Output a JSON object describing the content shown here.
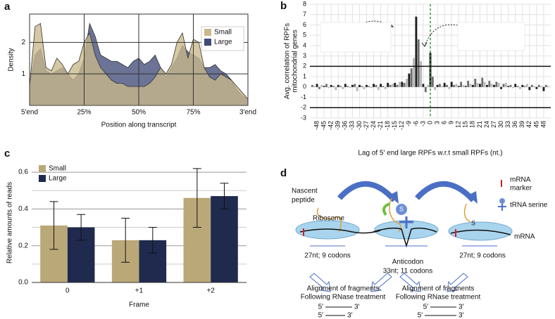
{
  "panel_labels": [
    "a",
    "b",
    "c",
    "d"
  ],
  "chart_data": [
    {
      "type": "area",
      "xlabel": "Position along transcript",
      "ylabel": "Density",
      "legend": "upper right",
      "grid": true,
      "xlim": [
        0,
        100
      ],
      "ylim": [
        0,
        2.9
      ],
      "yticks": [
        1,
        2
      ],
      "xticks": [
        {
          "value": 0,
          "label": "5′end"
        },
        {
          "value": 25,
          "label": "25%"
        },
        {
          "value": 50,
          "label": "50%"
        },
        {
          "value": 75,
          "label": "75%"
        },
        {
          "value": 100,
          "label": "3′end"
        }
      ],
      "x": [
        0,
        2.5,
        5,
        7.5,
        10,
        12.5,
        15,
        17.5,
        20,
        22.5,
        25,
        27.5,
        30,
        32.5,
        35,
        37.5,
        40,
        42.5,
        45,
        47.5,
        50,
        52.5,
        55,
        57.5,
        60,
        62.5,
        65,
        67.5,
        70,
        72.5,
        75,
        77.5,
        80,
        82.5,
        85,
        87.5,
        90,
        92.5,
        95,
        97.5,
        100
      ],
      "series": [
        {
          "name": "Small",
          "color": "#c9b98a",
          "values": [
            0.6,
            2.5,
            2.6,
            1.2,
            1.1,
            1.5,
            1.3,
            1.0,
            1.3,
            1.4,
            2.0,
            2.3,
            1.6,
            1.2,
            1.0,
            0.8,
            0.7,
            0.7,
            0.6,
            0.6,
            0.6,
            0.6,
            0.7,
            0.9,
            1.2,
            1.0,
            1.3,
            2.0,
            2.3,
            1.5,
            2.1,
            2.0,
            1.2,
            0.9,
            0.8,
            1.0,
            0.9,
            0.8,
            0.6,
            0.4,
            0.2
          ]
        },
        {
          "name": "Large",
          "color": "#414c78",
          "values": [
            0.7,
            1.6,
            1.8,
            1.1,
            1.0,
            1.1,
            1.2,
            1.0,
            0.8,
            1.0,
            1.5,
            2.6,
            2.2,
            1.6,
            1.5,
            1.4,
            1.4,
            1.3,
            1.2,
            1.4,
            1.5,
            1.3,
            1.4,
            1.6,
            1.2,
            0.9,
            1.2,
            1.5,
            1.9,
            1.7,
            1.6,
            1.5,
            1.2,
            1.2,
            1.3,
            1.1,
            1.0,
            0.8,
            0.5,
            0.3,
            0.2
          ]
        }
      ]
    },
    {
      "type": "bar",
      "xlabel": "Lag of 5′ end large RPFs w.r.t small RPFs (nt.)",
      "ylabel": [
        "Avg. correlation of RPFs",
        "mitochondrial genes"
      ],
      "grid": true,
      "xlim": [
        -51,
        51
      ],
      "ylim": [
        -3,
        8
      ],
      "yticks": [
        -3,
        -2,
        -1,
        0,
        1,
        2,
        3,
        4,
        5,
        6,
        7,
        8
      ],
      "xticks": [
        -48,
        -45,
        -42,
        -39,
        -36,
        -33,
        -30,
        -27,
        -24,
        -21,
        -18,
        -15,
        -12,
        -9,
        -6,
        -3,
        0,
        3,
        6,
        9,
        12,
        15,
        18,
        21,
        24,
        27,
        30,
        33,
        36,
        39,
        42,
        45,
        48
      ],
      "frame_colors": [
        "#1c1c1c",
        "#6e6e6e",
        "#b8b8b8"
      ],
      "reflines": [
        2,
        -2
      ],
      "marker_x": 0,
      "inset_marks": [
        "5",
        "5",
        "5",
        "5"
      ],
      "x": [
        -50,
        -49,
        -48,
        -47,
        -46,
        -45,
        -44,
        -43,
        -42,
        -41,
        -40,
        -39,
        -38,
        -37,
        -36,
        -35,
        -34,
        -33,
        -32,
        -31,
        -30,
        -29,
        -28,
        -27,
        -26,
        -25,
        -24,
        -23,
        -22,
        -21,
        -20,
        -19,
        -18,
        -17,
        -16,
        -15,
        -14,
        -13,
        -12,
        -11,
        -10,
        -9,
        -8,
        -7,
        -6,
        -5,
        -4,
        -3,
        -2,
        -1,
        0,
        1,
        2,
        3,
        4,
        5,
        6,
        7,
        8,
        9,
        10,
        11,
        12,
        13,
        14,
        15,
        16,
        17,
        18,
        19,
        20,
        21,
        22,
        23,
        24,
        25,
        26,
        27,
        28,
        29,
        30,
        31,
        32,
        33,
        34,
        35,
        36,
        37,
        38,
        39,
        40,
        41,
        42,
        43,
        44,
        45,
        46,
        47,
        48,
        49,
        50
      ],
      "values": [
        0.2,
        0.1,
        0.3,
        -0.2,
        0.2,
        0.1,
        0.3,
        -0.1,
        0.2,
        0.1,
        -0.3,
        0.2,
        0.1,
        -0.2,
        0.3,
        0.1,
        -0.1,
        0.2,
        0.3,
        -0.4,
        0.2,
        0.1,
        -0.2,
        0.2,
        0.1,
        -0.1,
        0.3,
        0.2,
        -0.3,
        0.3,
        0.1,
        -0.2,
        0.4,
        0.2,
        0.3,
        0.4,
        0.2,
        0.5,
        0.5,
        0.4,
        0.8,
        1.3,
        1.8,
        2.8,
        6.8,
        4.6,
        2.5,
        0.3,
        -0.5,
        0.2,
        3.3,
        1.0,
        -0.3,
        0.2,
        0.3,
        0.1,
        0.4,
        0.2,
        -0.2,
        0.5,
        0.2,
        0.3,
        0.1,
        0.5,
        0.2,
        0.1,
        0.6,
        0.3,
        0.2,
        0.8,
        0.4,
        0.3,
        0.9,
        0.5,
        0.2,
        0.6,
        0.3,
        0.2,
        0.5,
        0.4,
        -0.2,
        0.3,
        0.4,
        0.1,
        0.2,
        -0.1,
        0.3,
        0.1,
        -0.2,
        0.2,
        0.1,
        0.3,
        -0.3,
        0.2,
        0.1,
        -0.2,
        0.2,
        0.1,
        -0.4,
        0.2,
        0.1
      ]
    },
    {
      "type": "bar",
      "xlabel": "Frame",
      "ylabel": "Relative amounts of reads",
      "legend": "upper left",
      "grid": true,
      "categories": [
        "0",
        "+1",
        "+2"
      ],
      "ylim": [
        0,
        0.65
      ],
      "yticks": [
        {
          "value": 0,
          "label": "0.0"
        },
        0.2,
        0.4,
        0.6
      ],
      "minor_yticks": [
        0.1,
        0.3,
        0.5
      ],
      "series": [
        {
          "name": "Small",
          "color": "#bba878",
          "values": [
            0.31,
            0.23,
            0.46
          ],
          "errors": [
            0.13,
            0.12,
            0.16
          ]
        },
        {
          "name": "Large",
          "color": "#1f2a4e",
          "values": [
            0.3,
            0.23,
            0.47
          ],
          "errors": [
            0.07,
            0.07,
            0.07
          ]
        }
      ]
    }
  ],
  "diagram": {
    "nascent_peptide": [
      "Nascent",
      "peptide"
    ],
    "ribosome": "Ribosome",
    "legend_mrna_marker": [
      "mRNA",
      "marker"
    ],
    "legend_trna": "tRNA serine",
    "s_labels": [
      "S",
      "S"
    ],
    "mrna": "mRNA",
    "span_left": "27nt; 9 codons",
    "span_right": "27nt; 9 codons",
    "anticodon": "Anticodon",
    "span_mid": "33nt; 11 codons",
    "alignments": [
      {
        "lines": [
          "Alignment of fragments",
          "Following RNase treatment"
        ],
        "ends": [
          "5′",
          "3′",
          "5′",
          "3′"
        ]
      },
      {
        "lines": [
          "Alignment of fragments",
          "Following RNase treatment"
        ],
        "ends": [
          "5′",
          "3′",
          "5′",
          "3′"
        ]
      }
    ]
  }
}
